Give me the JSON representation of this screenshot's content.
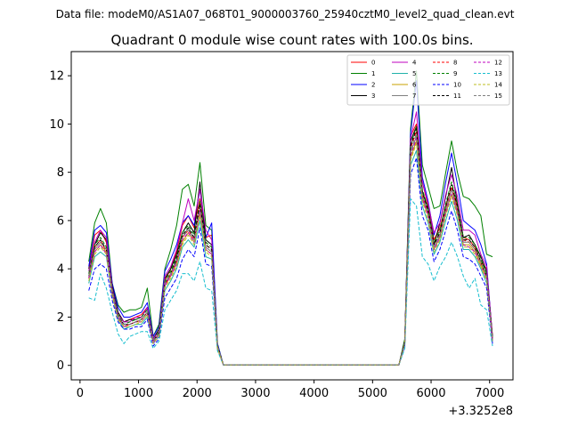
{
  "chart_data": {
    "type": "line",
    "suptitle": "Data file: modeM0/AS1A07_068T01_9000003760_25940cztM0_level2_quad_clean.evt",
    "title": "Quadrant 0 module wise count rates with 100.0s bins.",
    "xlabel": "",
    "ylabel": "",
    "x_offset_label": "+3.3252e8",
    "xlim": [
      -150,
      7400
    ],
    "ylim": [
      -0.6,
      13.0
    ],
    "xticks": [
      0,
      1000,
      2000,
      3000,
      4000,
      5000,
      6000,
      7000
    ],
    "yticks": [
      0,
      2,
      4,
      6,
      8,
      10,
      12
    ],
    "x": [
      150,
      250,
      350,
      450,
      550,
      650,
      750,
      850,
      950,
      1050,
      1150,
      1250,
      1350,
      1450,
      1550,
      1650,
      1750,
      1850,
      1950,
      2050,
      2150,
      2250,
      2350,
      2450,
      5450,
      5550,
      5650,
      5750,
      5850,
      5950,
      6050,
      6150,
      6250,
      6350,
      6450,
      6550,
      6650,
      6750,
      6850,
      6950,
      7050
    ],
    "legend_position": "top-right",
    "series": [
      {
        "name": "0",
        "color": "#ff0000",
        "dash": "solid",
        "values": [
          4.0,
          5.4,
          5.6,
          5.1,
          3.2,
          2.1,
          1.8,
          1.9,
          2.0,
          2.1,
          2.4,
          1.1,
          1.4,
          3.5,
          4.0,
          4.7,
          5.8,
          6.2,
          5.7,
          6.9,
          5.3,
          5.4,
          0.8,
          0.02,
          0.02,
          1.0,
          9.5,
          10.0,
          7.6,
          6.6,
          5.2,
          5.7,
          6.6,
          7.3,
          6.6,
          5.3,
          5.2,
          4.9,
          4.3,
          4.0,
          1.2
        ]
      },
      {
        "name": "1",
        "color": "#008000",
        "dash": "solid",
        "values": [
          4.3,
          5.9,
          6.5,
          5.9,
          3.4,
          2.5,
          2.2,
          2.3,
          2.3,
          2.4,
          3.2,
          1.2,
          1.7,
          4.0,
          4.8,
          5.8,
          7.3,
          7.5,
          6.6,
          8.4,
          5.8,
          5.6,
          0.9,
          0.02,
          0.02,
          1.1,
          9.8,
          12.2,
          8.3,
          7.4,
          6.5,
          6.6,
          8.0,
          9.3,
          8.0,
          7.0,
          6.9,
          6.6,
          6.2,
          4.6,
          4.5
        ]
      },
      {
        "name": "2",
        "color": "#0000ff",
        "dash": "solid",
        "values": [
          4.1,
          5.6,
          5.8,
          5.5,
          3.4,
          2.4,
          2.0,
          2.0,
          2.1,
          2.2,
          2.6,
          1.2,
          1.6,
          3.9,
          4.4,
          5.0,
          5.9,
          6.2,
          5.8,
          7.3,
          5.3,
          5.9,
          0.9,
          0.02,
          0.02,
          1.0,
          9.6,
          11.8,
          7.8,
          6.8,
          5.4,
          6.2,
          7.6,
          8.8,
          7.5,
          6.0,
          5.8,
          5.6,
          5.0,
          4.2,
          1.1
        ]
      },
      {
        "name": "3",
        "color": "#000000",
        "dash": "solid",
        "values": [
          4.0,
          5.0,
          5.5,
          5.2,
          3.3,
          2.2,
          1.8,
          1.9,
          1.9,
          2.0,
          2.4,
          1.1,
          1.5,
          3.6,
          4.0,
          4.6,
          5.5,
          5.9,
          5.5,
          7.6,
          5.2,
          5.0,
          0.8,
          0.02,
          0.02,
          1.0,
          9.3,
          9.9,
          7.2,
          6.5,
          5.0,
          5.9,
          7.0,
          8.2,
          6.7,
          5.3,
          5.4,
          5.0,
          4.5,
          3.9,
          1.2
        ]
      },
      {
        "name": "4",
        "color": "#bf00bf",
        "dash": "solid",
        "values": [
          3.9,
          5.1,
          5.6,
          5.3,
          3.2,
          2.1,
          1.8,
          1.8,
          2.0,
          2.0,
          2.4,
          1.1,
          1.4,
          3.7,
          4.1,
          4.8,
          5.9,
          6.9,
          6.0,
          7.3,
          5.6,
          5.2,
          0.8,
          0.02,
          0.02,
          1.0,
          9.4,
          10.5,
          7.6,
          6.7,
          5.5,
          5.9,
          7.1,
          7.9,
          7.0,
          5.6,
          5.6,
          5.4,
          4.6,
          4.1,
          1.1
        ]
      },
      {
        "name": "5",
        "color": "#20b2aa",
        "dash": "solid",
        "values": [
          3.4,
          4.5,
          4.7,
          4.5,
          2.9,
          1.9,
          1.5,
          1.6,
          1.7,
          1.7,
          2.0,
          0.9,
          1.2,
          3.1,
          3.5,
          4.0,
          4.9,
          5.2,
          4.9,
          6.0,
          4.5,
          4.4,
          0.7,
          0.02,
          0.02,
          0.9,
          8.3,
          8.9,
          6.6,
          5.9,
          4.6,
          5.1,
          6.0,
          6.8,
          6.0,
          4.8,
          4.8,
          4.5,
          4.0,
          3.4,
          1.0
        ]
      },
      {
        "name": "6",
        "color": "#c8a000",
        "dash": "solid",
        "values": [
          3.6,
          4.7,
          5.0,
          4.7,
          3.0,
          2.0,
          1.6,
          1.7,
          1.8,
          1.8,
          2.1,
          1.0,
          1.3,
          3.3,
          3.7,
          4.2,
          5.1,
          5.5,
          5.1,
          6.3,
          4.8,
          4.6,
          0.7,
          0.02,
          0.02,
          0.9,
          8.6,
          9.3,
          6.9,
          6.2,
          4.8,
          5.3,
          6.3,
          7.1,
          6.3,
          5.0,
          5.0,
          4.7,
          4.2,
          3.6,
          1.0
        ]
      },
      {
        "name": "7",
        "color": "#808080",
        "dash": "solid",
        "values": [
          3.7,
          4.8,
          5.1,
          4.8,
          3.1,
          2.0,
          1.7,
          1.7,
          1.8,
          1.9,
          2.2,
          1.0,
          1.3,
          3.4,
          3.8,
          4.4,
          5.3,
          5.7,
          5.2,
          6.5,
          4.9,
          4.7,
          0.8,
          0.02,
          0.02,
          0.9,
          8.8,
          9.5,
          7.0,
          6.3,
          4.9,
          5.4,
          6.4,
          7.3,
          6.4,
          5.1,
          5.1,
          4.8,
          4.3,
          3.7,
          1.0
        ]
      },
      {
        "name": "8",
        "color": "#ff0000",
        "dash": "dashed",
        "values": [
          3.6,
          4.9,
          5.2,
          4.7,
          3.0,
          2.0,
          1.6,
          1.7,
          1.8,
          1.9,
          2.2,
          1.0,
          1.3,
          3.3,
          3.8,
          4.3,
          5.3,
          5.6,
          5.2,
          6.6,
          5.0,
          4.8,
          0.8,
          0.02,
          0.02,
          0.9,
          9.0,
          9.7,
          7.1,
          6.3,
          5.0,
          5.5,
          6.5,
          7.4,
          6.5,
          5.2,
          5.1,
          4.8,
          4.3,
          3.7,
          1.0
        ]
      },
      {
        "name": "9",
        "color": "#008000",
        "dash": "dashed",
        "values": [
          3.8,
          5.0,
          5.3,
          4.9,
          3.1,
          2.1,
          1.7,
          1.8,
          1.9,
          2.0,
          2.3,
          1.0,
          1.4,
          3.5,
          3.9,
          4.5,
          5.5,
          5.8,
          5.4,
          6.8,
          5.1,
          4.9,
          0.8,
          0.02,
          0.02,
          1.0,
          9.1,
          9.9,
          7.3,
          6.5,
          5.1,
          5.6,
          6.7,
          7.6,
          6.7,
          5.3,
          5.3,
          5.0,
          4.4,
          3.8,
          1.1
        ]
      },
      {
        "name": "10",
        "color": "#0000ff",
        "dash": "dashed",
        "values": [
          3.1,
          4.0,
          4.2,
          4.0,
          2.7,
          1.8,
          1.5,
          1.5,
          1.6,
          1.6,
          1.9,
          0.8,
          1.1,
          2.8,
          3.2,
          3.6,
          4.4,
          4.8,
          4.5,
          5.7,
          4.2,
          4.1,
          0.7,
          0.02,
          0.02,
          0.8,
          7.9,
          8.6,
          6.2,
          5.6,
          4.3,
          4.8,
          5.6,
          6.4,
          5.6,
          4.5,
          4.4,
          4.2,
          3.7,
          3.2,
          0.9
        ]
      },
      {
        "name": "11",
        "color": "#000000",
        "dash": "dashed",
        "values": [
          3.7,
          4.9,
          5.2,
          4.8,
          3.1,
          2.0,
          1.7,
          1.7,
          1.8,
          1.9,
          2.2,
          1.0,
          1.3,
          3.4,
          3.8,
          4.4,
          5.4,
          5.7,
          5.3,
          6.7,
          5.0,
          4.8,
          0.8,
          0.02,
          0.02,
          1.0,
          9.1,
          9.8,
          7.2,
          6.4,
          5.0,
          5.5,
          6.6,
          7.5,
          6.6,
          5.2,
          5.2,
          4.9,
          4.3,
          3.7,
          1.0
        ]
      },
      {
        "name": "12",
        "color": "#bf00bf",
        "dash": "dashed",
        "values": [
          3.6,
          4.7,
          5.0,
          4.6,
          3.0,
          2.0,
          1.6,
          1.7,
          1.8,
          1.8,
          2.1,
          0.9,
          1.3,
          3.3,
          3.7,
          4.2,
          5.2,
          5.5,
          5.1,
          6.4,
          4.8,
          4.6,
          0.7,
          0.02,
          0.02,
          0.9,
          8.7,
          9.4,
          6.9,
          6.2,
          4.8,
          5.3,
          6.3,
          7.1,
          6.3,
          5.0,
          4.9,
          4.7,
          4.1,
          3.6,
          1.0
        ]
      },
      {
        "name": "13",
        "color": "#17becf",
        "dash": "dashed",
        "values": [
          2.8,
          2.7,
          3.8,
          3.2,
          2.2,
          1.3,
          0.9,
          1.2,
          1.3,
          1.4,
          1.4,
          0.7,
          1.0,
          2.3,
          2.7,
          3.1,
          3.8,
          3.8,
          3.5,
          4.3,
          3.2,
          3.1,
          0.6,
          0.02,
          0.02,
          0.7,
          6.9,
          6.6,
          4.5,
          4.2,
          3.5,
          4.1,
          4.5,
          5.1,
          4.5,
          3.7,
          3.2,
          3.6,
          2.5,
          2.3,
          0.8
        ]
      },
      {
        "name": "14",
        "color": "#bcbd22",
        "dash": "dashed",
        "values": [
          3.5,
          4.6,
          4.9,
          4.6,
          2.9,
          1.9,
          1.6,
          1.6,
          1.7,
          1.8,
          2.1,
          0.9,
          1.2,
          3.2,
          3.6,
          4.1,
          5.0,
          5.4,
          5.0,
          6.2,
          4.7,
          4.5,
          0.7,
          0.02,
          0.02,
          0.9,
          8.5,
          9.2,
          6.8,
          6.0,
          4.7,
          5.2,
          6.2,
          7.0,
          6.2,
          4.9,
          4.9,
          4.6,
          4.1,
          3.5,
          1.0
        ]
      },
      {
        "name": "15",
        "color": "#7f7f7f",
        "dash": "dashed",
        "values": [
          3.7,
          4.8,
          5.1,
          4.8,
          3.1,
          2.0,
          1.7,
          1.7,
          1.8,
          1.9,
          2.2,
          1.0,
          1.3,
          3.4,
          3.8,
          4.3,
          5.3,
          5.6,
          5.2,
          6.5,
          4.9,
          4.7,
          0.8,
          0.02,
          0.02,
          0.9,
          8.9,
          9.6,
          7.1,
          6.3,
          4.9,
          5.4,
          6.5,
          7.3,
          6.4,
          5.1,
          5.1,
          4.8,
          4.3,
          3.7,
          1.0
        ]
      }
    ]
  }
}
